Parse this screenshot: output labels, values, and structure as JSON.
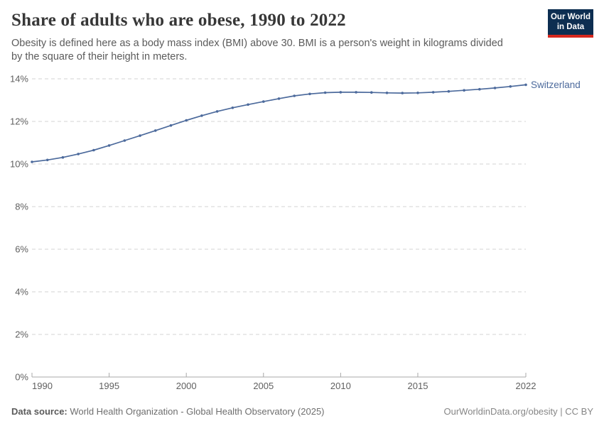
{
  "header": {
    "title": "Share of adults who are obese, 1990 to 2022",
    "subtitle": "Obesity is defined here as a body mass index (BMI) above 30. BMI is a person's weight in kilograms divided by the square of their height in meters."
  },
  "logo": {
    "line1": "Our World",
    "line2": "in Data",
    "bg_color": "#0d2e51",
    "bar_color": "#d6281e"
  },
  "chart_data": {
    "type": "line",
    "title": "Share of adults who are obese, 1990 to 2022",
    "x": [
      1990,
      1991,
      1992,
      1993,
      1994,
      1995,
      1996,
      1997,
      1998,
      1999,
      2000,
      2001,
      2002,
      2003,
      2004,
      2005,
      2006,
      2007,
      2008,
      2009,
      2010,
      2011,
      2012,
      2013,
      2014,
      2015,
      2016,
      2017,
      2018,
      2019,
      2020,
      2021,
      2022
    ],
    "series": [
      {
        "name": "Switzerland",
        "color": "#4c6a9c",
        "values": [
          10.1,
          10.19,
          10.31,
          10.47,
          10.65,
          10.87,
          11.1,
          11.33,
          11.57,
          11.81,
          12.05,
          12.27,
          12.47,
          12.64,
          12.79,
          12.93,
          13.07,
          13.2,
          13.29,
          13.35,
          13.37,
          13.37,
          13.36,
          13.34,
          13.33,
          13.34,
          13.37,
          13.41,
          13.46,
          13.51,
          13.57,
          13.64,
          13.72
        ]
      }
    ],
    "xlabel": "",
    "ylabel": "",
    "ylim": [
      0,
      14
    ],
    "yticks": [
      0,
      2,
      4,
      6,
      8,
      10,
      12,
      14
    ],
    "ytick_suffix": "%",
    "xticks": [
      1990,
      1995,
      2000,
      2005,
      2010,
      2015,
      2022
    ],
    "grid": "horizontal-dashed",
    "legend_position": "end-of-line",
    "grid_color": "#e2e2e2",
    "axis_color": "#a8a8a8"
  },
  "footer": {
    "datasource_label": "Data source:",
    "datasource_value": " World Health Organization - Global Health Observatory (2025)",
    "credit": "OurWorldinData.org/obesity | CC BY"
  }
}
